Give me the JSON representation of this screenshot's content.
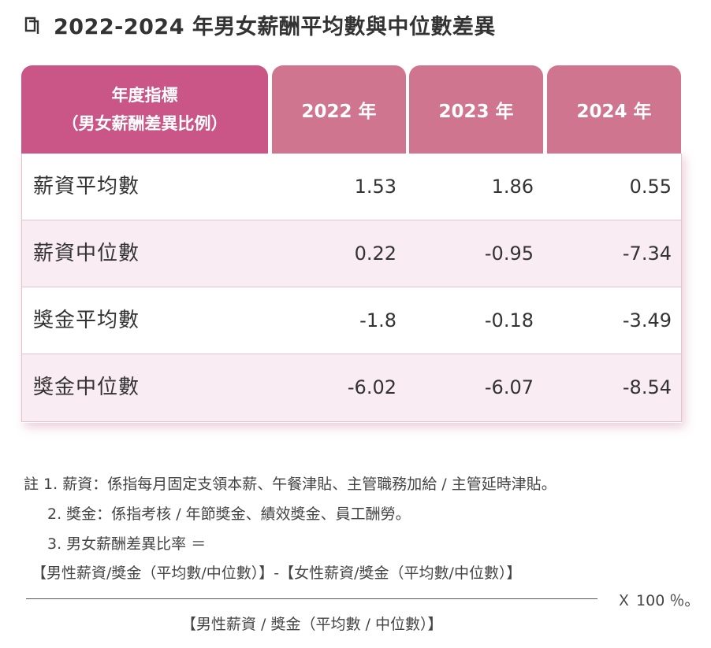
{
  "title": "2022-2024 年男女薪酬平均數與中位數差異",
  "table": {
    "header_label_line1": "年度指標",
    "header_label_line2": "（男女薪酬差異比例）",
    "years": [
      "2022 年",
      "2023 年",
      "2024 年"
    ],
    "rows": [
      {
        "label": "薪資平均數",
        "values": [
          "1.53",
          "1.86",
          "0.55"
        ]
      },
      {
        "label": "薪資中位數",
        "values": [
          "0.22",
          "-0.95",
          "-7.34"
        ]
      },
      {
        "label": "獎金平均數",
        "values": [
          "-1.8",
          "-0.18",
          "-3.49"
        ]
      },
      {
        "label": "獎金中位數",
        "values": [
          "-6.02",
          "-6.07",
          "-8.54"
        ]
      }
    ]
  },
  "notes": {
    "note1": "註 1. 薪資：係指每月固定支領本薪、午餐津貼、主管職務加給 / 主管延時津貼。",
    "note2": "2. 獎金：係指考核 / 年節獎金、績效獎金、員工酬勞。",
    "note3": "3. 男女薪酬差異比率 ＝"
  },
  "formula": {
    "numerator": "【男性薪資/獎金（平均數/中位數）】-【女性薪資/獎金（平均數/中位數）】",
    "multiplier": "Ｘ 100 ％。",
    "denominator": "【男性薪資 / 獎金（平均數 / 中位數）】"
  },
  "colors": {
    "header_primary": "#c95687",
    "header_year": "#d0758f",
    "row_alt": "#f9ecf2"
  }
}
